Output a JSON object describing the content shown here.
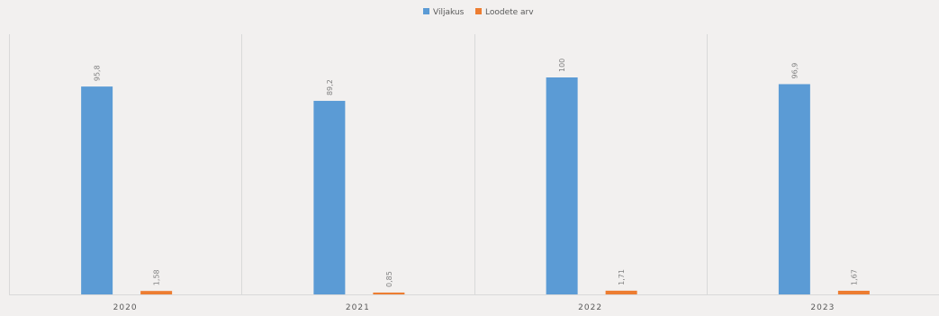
{
  "chart_data": {
    "type": "bar",
    "categories": [
      "2020",
      "2021",
      "2022",
      "2023"
    ],
    "series": [
      {
        "name": "Viljakus",
        "values": [
          95.8,
          89.2,
          100,
          96.9
        ],
        "labels": [
          "95,8",
          "89,2",
          "100",
          "96,9"
        ],
        "color": "#5b9bd5"
      },
      {
        "name": "Loodete arv",
        "values": [
          1.58,
          0.85,
          1.71,
          1.67
        ],
        "labels": [
          "1,58",
          "0,85",
          "1,71",
          "1,67"
        ],
        "color": "#ed7d31"
      }
    ],
    "title": "",
    "xlabel": "",
    "ylabel": "",
    "ylim": [
      0,
      120
    ],
    "grid": false,
    "category_separators": true,
    "legend_position": "top-center",
    "data_labels": "rotated-vertical"
  },
  "colors": {
    "background": "#f2f0ef",
    "axis": "#d9d9d9",
    "text": "#595959",
    "label": "#7f7f7f"
  }
}
